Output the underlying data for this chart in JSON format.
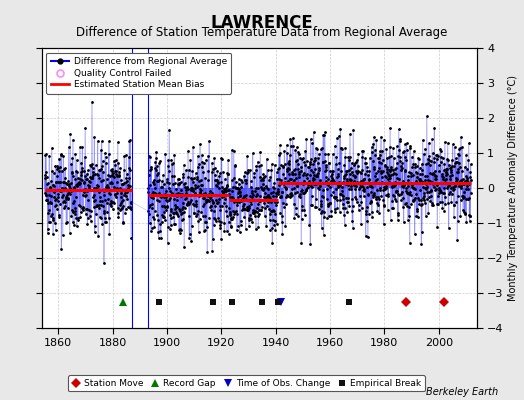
{
  "title": "LAWRENCE",
  "subtitle": "Difference of Station Temperature Data from Regional Average",
  "ylabel_right": "Monthly Temperature Anomaly Difference (°C)",
  "xlim": [
    1854,
    2014
  ],
  "ylim": [
    -4,
    4
  ],
  "yticks": [
    -4,
    -3,
    -2,
    -1,
    0,
    1,
    2,
    3,
    4
  ],
  "xticks": [
    1860,
    1880,
    1900,
    1920,
    1940,
    1960,
    1980,
    2000
  ],
  "background_color": "#e8e8e8",
  "plot_bg_color": "#ffffff",
  "seed": 42,
  "start_year": 1855,
  "end_year": 2012,
  "gap_start": 1887,
  "gap_end": 1893,
  "segments": [
    {
      "start": 1855,
      "end": 1887,
      "bias": -0.05,
      "std": 0.65
    },
    {
      "start": 1893,
      "end": 1923,
      "bias": -0.2,
      "std": 0.6
    },
    {
      "start": 1923,
      "end": 1941,
      "bias": -0.35,
      "std": 0.55
    },
    {
      "start": 1941,
      "end": 2012,
      "bias": 0.15,
      "std": 0.6
    }
  ],
  "station_moves": [
    1988,
    2002
  ],
  "record_gaps": [
    1884
  ],
  "time_obs_changes": [
    1942
  ],
  "empirical_breaks": [
    1897,
    1917,
    1924,
    1935,
    1941,
    1967
  ],
  "marker_y": -3.25,
  "line_color": "#0000ff",
  "bias_color": "#ff0000",
  "data_color": "#000000",
  "station_move_color": "#cc0000",
  "record_gap_color": "#007700",
  "time_obs_color": "#0000cc",
  "empirical_break_color": "#111111",
  "fontsize_title": 12,
  "fontsize_subtitle": 8.5,
  "watermark": "Berkeley Earth"
}
